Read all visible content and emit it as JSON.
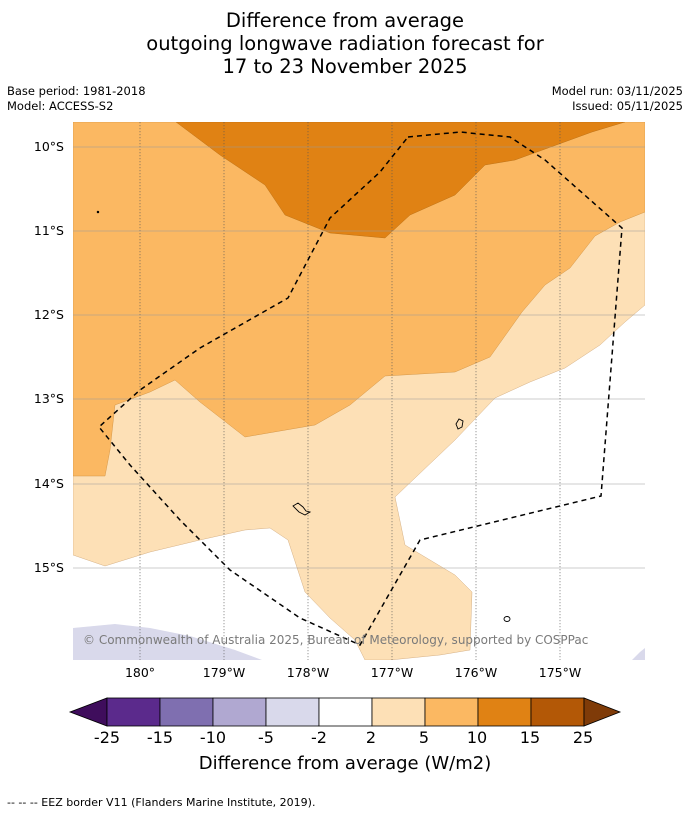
{
  "title": {
    "line1": "Difference from average",
    "line2": "outgoing longwave radiation forecast for",
    "line3": "17 to 23 November 2025"
  },
  "meta": {
    "base_period": "Base period: 1981-2018",
    "model": "Model: ACCESS-S2",
    "model_run": "Model run: 03/11/2025",
    "issued": "Issued: 05/11/2025"
  },
  "map": {
    "lat_labels": [
      "10°S",
      "11°S",
      "12°S",
      "13°S",
      "14°S",
      "15°S"
    ],
    "lon_labels": [
      "180°",
      "179°W",
      "178°W",
      "177°W",
      "176°W",
      "175°W"
    ],
    "copyright": "© Commonwealth of Australia 2025, Bureau of Meteorology, supported by COSPPac"
  },
  "colorbar": {
    "ticks": [
      "-25",
      "-15",
      "-10",
      "-5",
      "-2",
      "2",
      "5",
      "10",
      "15",
      "25"
    ],
    "colors": [
      "#3f0d5c",
      "#5b2a8c",
      "#7f6fb0",
      "#b0a8d1",
      "#d9d9eb",
      "#ffffff",
      "#fde0b6",
      "#fbb862",
      "#e08214",
      "#b35806",
      "#7f3b08"
    ],
    "label": "Difference from average (W/m2)"
  },
  "footer": "--  --  -- EEZ border V11 (Flanders Marine Institute, 2019)."
}
